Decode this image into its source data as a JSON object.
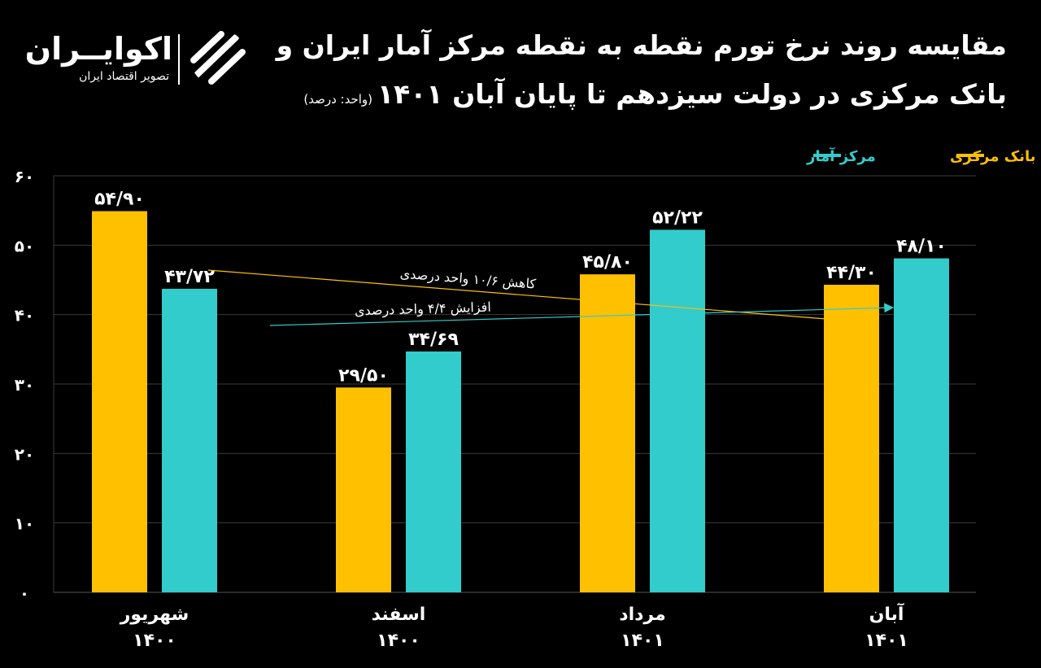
{
  "header": {
    "title_line1": "مقایسه روند نرخ تورم نقطه به نقطه مرکز آمار ایران و",
    "title_line2": "بانک مرکزی در دولت سیزدهم تا پایان آبان ۱۴۰۱",
    "unit_note": "(واحد: درصد)"
  },
  "logo": {
    "name": "اکوایــران",
    "tagline": "تصویر اقتصاد ایران",
    "icon": "ecoiran-logo-icon"
  },
  "colors": {
    "background": "#000000",
    "central_bank": "#FFC000",
    "statistical_center": "#33CCCC",
    "grid": "#3a3a3a"
  },
  "chart_data": {
    "type": "bar",
    "categories": [
      {
        "month": "شهریور",
        "year": "۱۴۰۰"
      },
      {
        "month": "اسفند",
        "year": "۱۴۰۰"
      },
      {
        "month": "مرداد",
        "year": "۱۴۰۱"
      },
      {
        "month": "آبان",
        "year": "۱۴۰۱"
      }
    ],
    "series": [
      {
        "name": "بانک مرکزی",
        "color": "#FFC000",
        "values": [
          54.9,
          29.5,
          45.8,
          44.3
        ],
        "labels": [
          "۵۴/۹۰",
          "۲۹/۵۰",
          "۴۵/۸۰",
          "۴۴/۳۰"
        ]
      },
      {
        "name": "مرکز آمار",
        "color": "#33CCCC",
        "values": [
          43.72,
          34.69,
          52.22,
          48.1
        ],
        "labels": [
          "۴۳/۷۲",
          "۳۴/۶۹",
          "۵۲/۲۲",
          "۴۸/۱۰"
        ]
      }
    ],
    "ylim": [
      0,
      60
    ],
    "yticks": [
      {
        "value": 0,
        "label": "۰"
      },
      {
        "value": 10,
        "label": "۱۰"
      },
      {
        "value": 20,
        "label": "۲۰"
      },
      {
        "value": 30,
        "label": "۳۰"
      },
      {
        "value": 40,
        "label": "۴۰"
      },
      {
        "value": 50,
        "label": "۵۰"
      },
      {
        "value": 60,
        "label": "۶۰"
      }
    ],
    "grid": true,
    "legend_position": "top-right",
    "annotations": [
      {
        "text": "کاهش ۱۰/۶ واحد درصدی",
        "series": "بانک مرکزی",
        "from_category": 0,
        "to_category": 3,
        "change": -10.6
      },
      {
        "text": "افزایش ۴/۴ واحد درصدی",
        "series": "مرکز آمار",
        "from_category": 0,
        "to_category": 3,
        "change": 4.4
      }
    ]
  }
}
